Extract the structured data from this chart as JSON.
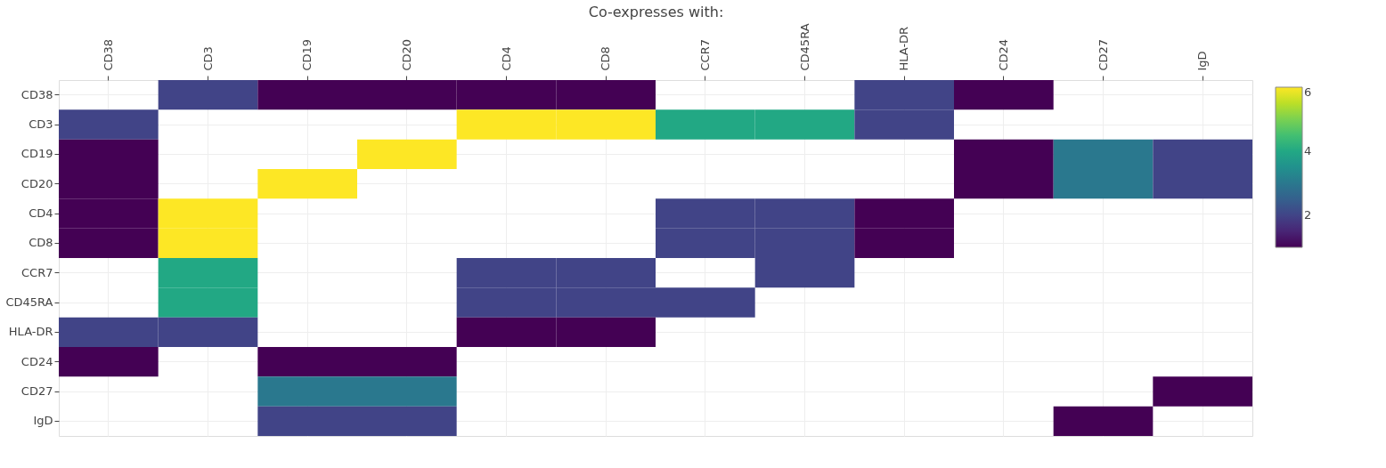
{
  "chart_data": {
    "type": "heatmap",
    "xlabel": "Co-expresses with:",
    "categories": [
      "CD38",
      "CD3",
      "CD19",
      "CD20",
      "CD4",
      "CD8",
      "CCR7",
      "CD45RA",
      "HLA-DR",
      "CD24",
      "CD27",
      "IgD"
    ],
    "y_categories": [
      "CD38",
      "CD3",
      "CD19",
      "CD20",
      "CD4",
      "CD8",
      "CCR7",
      "CD45RA",
      "HLA-DR",
      "CD24",
      "CD27",
      "IgD"
    ],
    "cells": [
      [
        null,
        2,
        1,
        1,
        1,
        1,
        null,
        null,
        2,
        1,
        null,
        null
      ],
      [
        2,
        null,
        null,
        null,
        6,
        6,
        4,
        4,
        2,
        null,
        null,
        null
      ],
      [
        1,
        null,
        null,
        6,
        null,
        null,
        null,
        null,
        null,
        1,
        3,
        2
      ],
      [
        1,
        null,
        6,
        null,
        null,
        null,
        null,
        null,
        null,
        1,
        3,
        2
      ],
      [
        1,
        6,
        null,
        null,
        null,
        null,
        2,
        2,
        1,
        null,
        null,
        null
      ],
      [
        1,
        6,
        null,
        null,
        null,
        null,
        2,
        2,
        1,
        null,
        null,
        null
      ],
      [
        null,
        4,
        null,
        null,
        2,
        2,
        null,
        2,
        null,
        null,
        null,
        null
      ],
      [
        null,
        4,
        null,
        null,
        2,
        2,
        2,
        null,
        null,
        null,
        null,
        null
      ],
      [
        2,
        2,
        null,
        null,
        1,
        1,
        null,
        null,
        null,
        null,
        null,
        null
      ],
      [
        1,
        null,
        1,
        1,
        null,
        null,
        null,
        null,
        null,
        null,
        null,
        null
      ],
      [
        null,
        null,
        3,
        3,
        null,
        null,
        null,
        null,
        null,
        null,
        null,
        1
      ],
      [
        null,
        null,
        2,
        2,
        null,
        null,
        null,
        null,
        null,
        null,
        1,
        null
      ]
    ],
    "clim": [
      1,
      6
    ],
    "cticks": [
      2,
      4,
      6
    ],
    "grid": true
  }
}
